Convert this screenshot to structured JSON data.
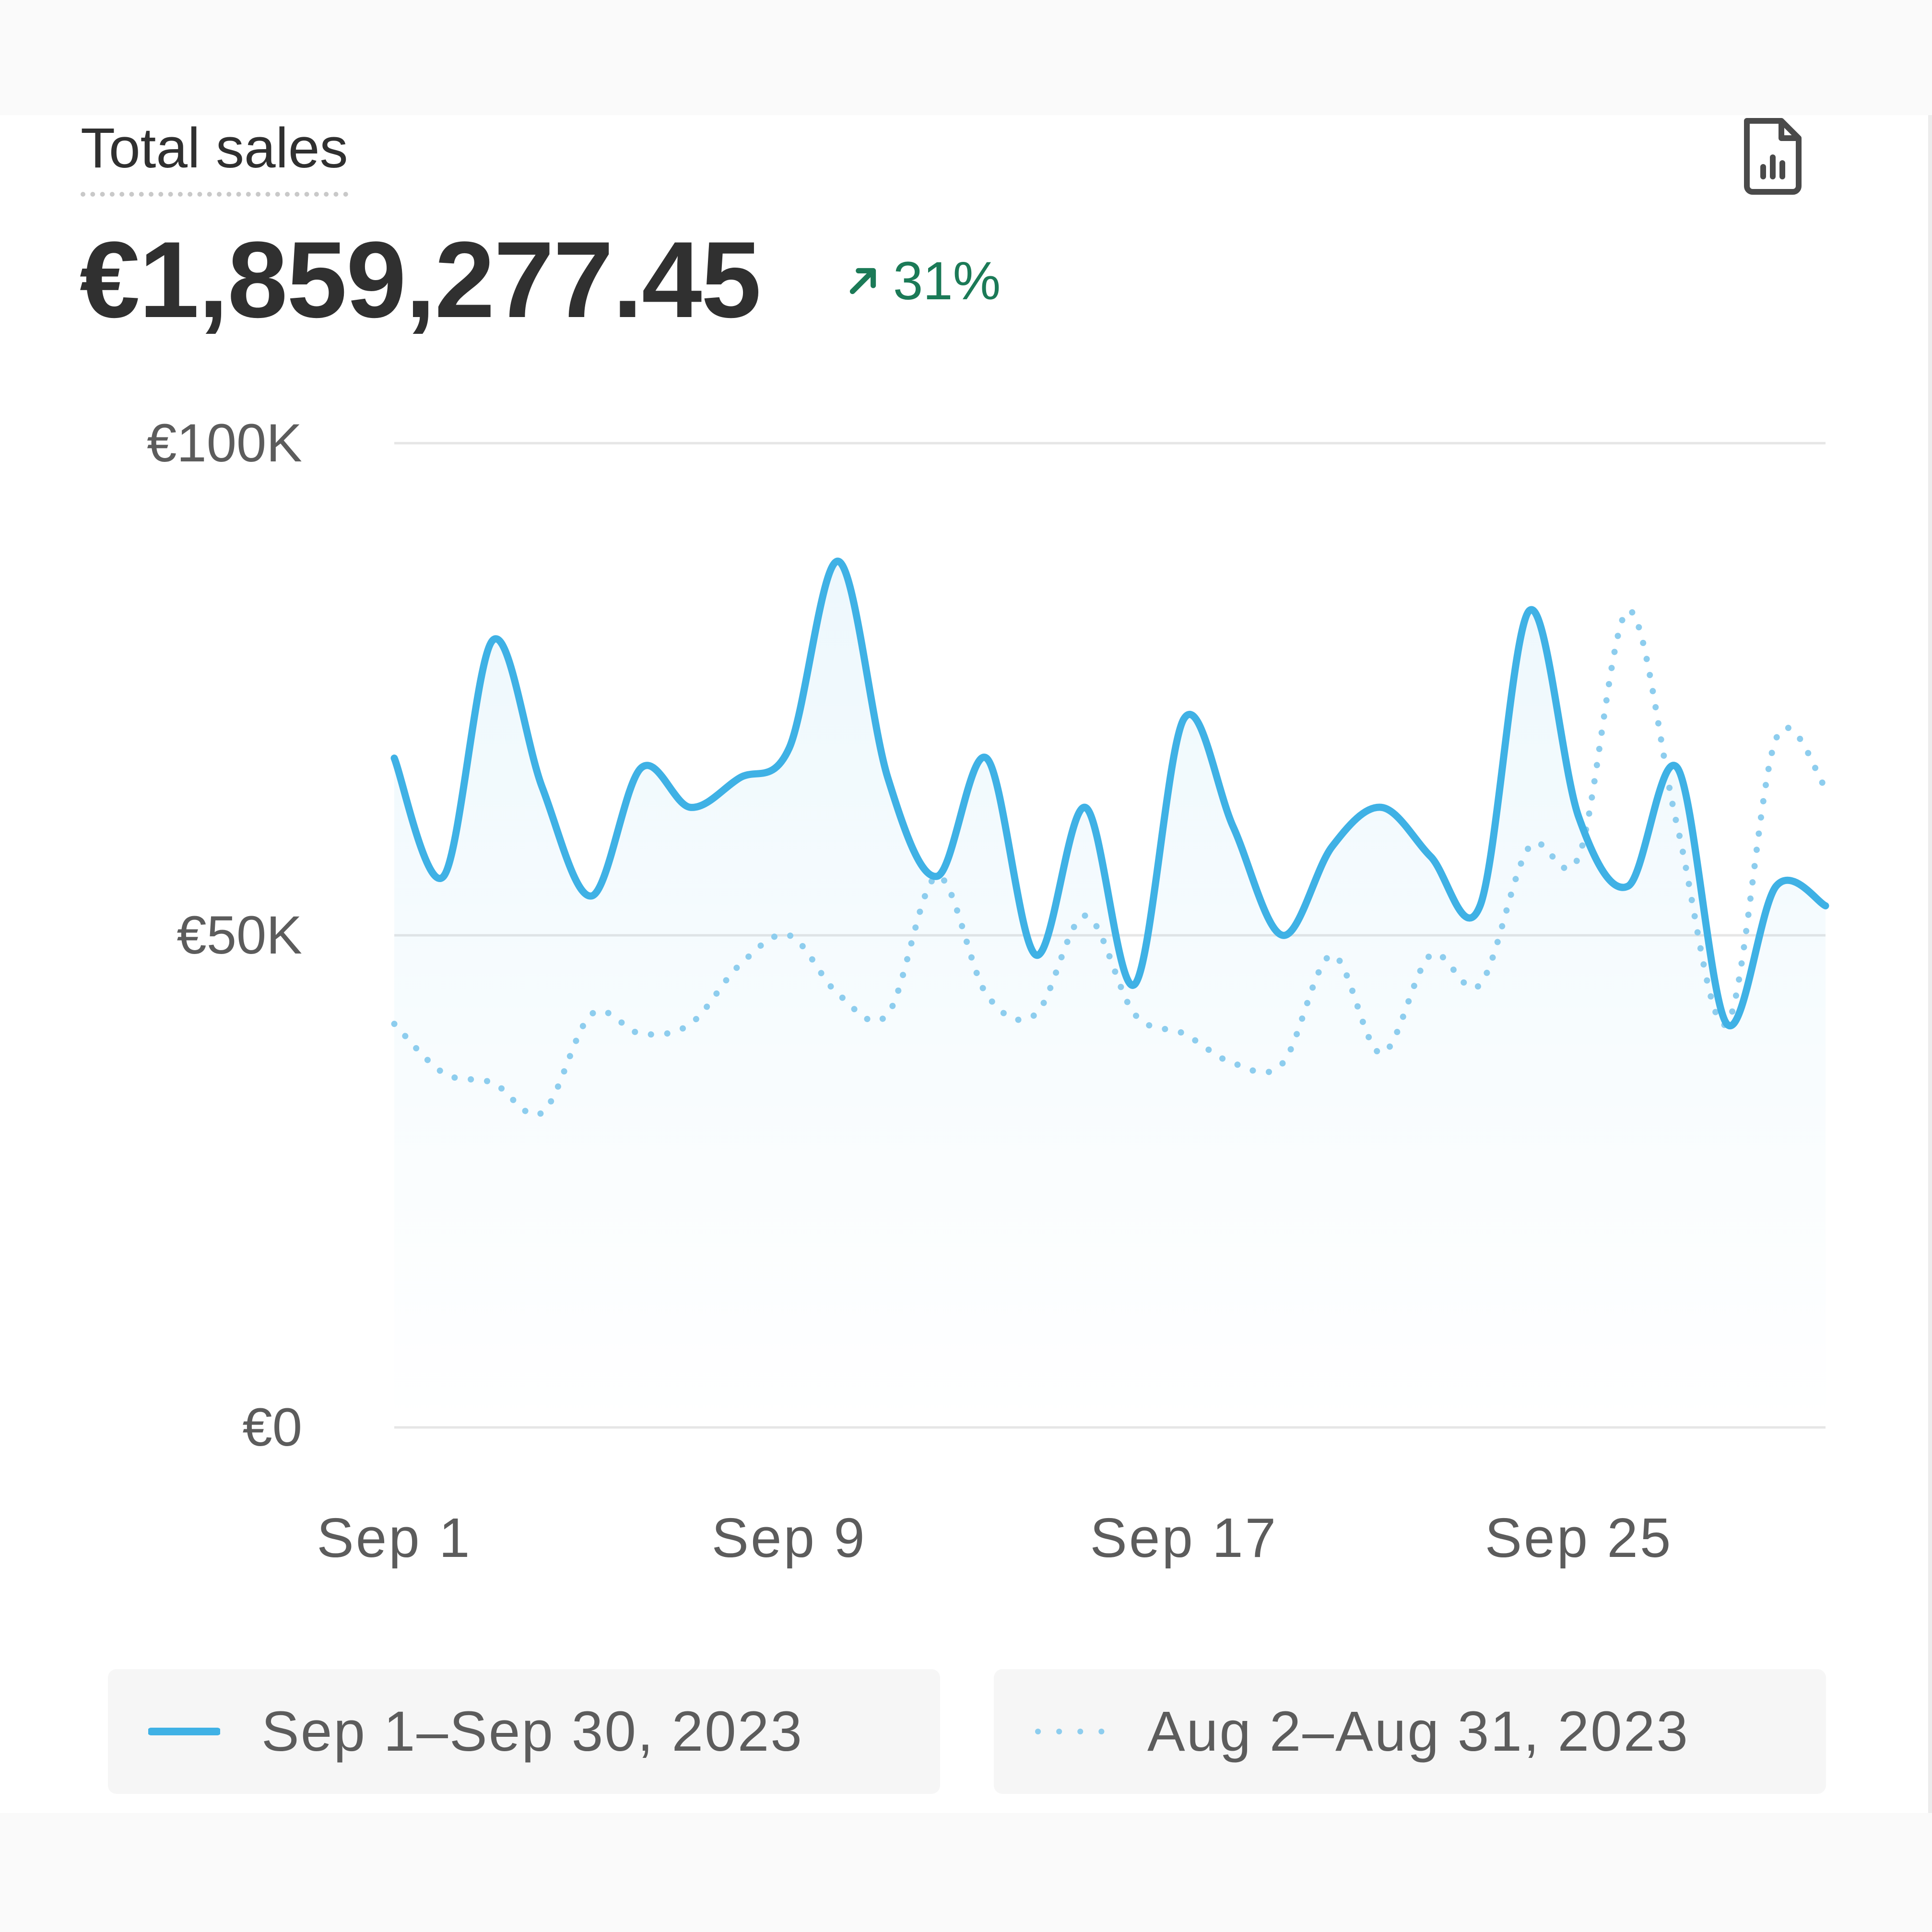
{
  "card": {
    "title": "Total sales",
    "total": "€1,859,277.45",
    "change": "31%",
    "icons": {
      "report": "report-chart-icon",
      "change": "arrow-up-right-icon"
    }
  },
  "colors": {
    "primary": "#3fb1e5",
    "comparison": "#8dcdee",
    "positive": "#1b7a57",
    "grid": "#e6e6e6",
    "tick_text": "#5c5c5c"
  },
  "chart_data": {
    "type": "line",
    "y_ticks": [
      "€100K",
      "€50K",
      "€0"
    ],
    "ylim": [
      0,
      100000
    ],
    "grid": true,
    "x_ticks": [
      "Sep 1",
      "Sep 9",
      "Sep 17",
      "Sep 25"
    ],
    "legend_placement": "bottom",
    "series": [
      {
        "name": "Sep 1–Sep 30, 2023",
        "style": "solid",
        "values": [
          68000,
          56000,
          80000,
          65000,
          54000,
          67000,
          63000,
          66000,
          69000,
          88000,
          66000,
          56000,
          68000,
          48000,
          63000,
          45000,
          72000,
          61000,
          50000,
          59000,
          63000,
          58000,
          53000,
          83000,
          62000,
          55000,
          67000,
          41000,
          55000,
          53000
        ]
      },
      {
        "name": "Aug 2–Aug 31, 2023",
        "style": "dotted",
        "values": [
          41000,
          36000,
          35000,
          32000,
          42000,
          40000,
          41000,
          47000,
          50000,
          44000,
          42000,
          56000,
          44000,
          42000,
          52000,
          42000,
          40000,
          37000,
          37000,
          48000,
          38000,
          48000,
          45000,
          59000,
          58000,
          83000,
          61000,
          41000,
          70000,
          65000
        ]
      }
    ]
  }
}
